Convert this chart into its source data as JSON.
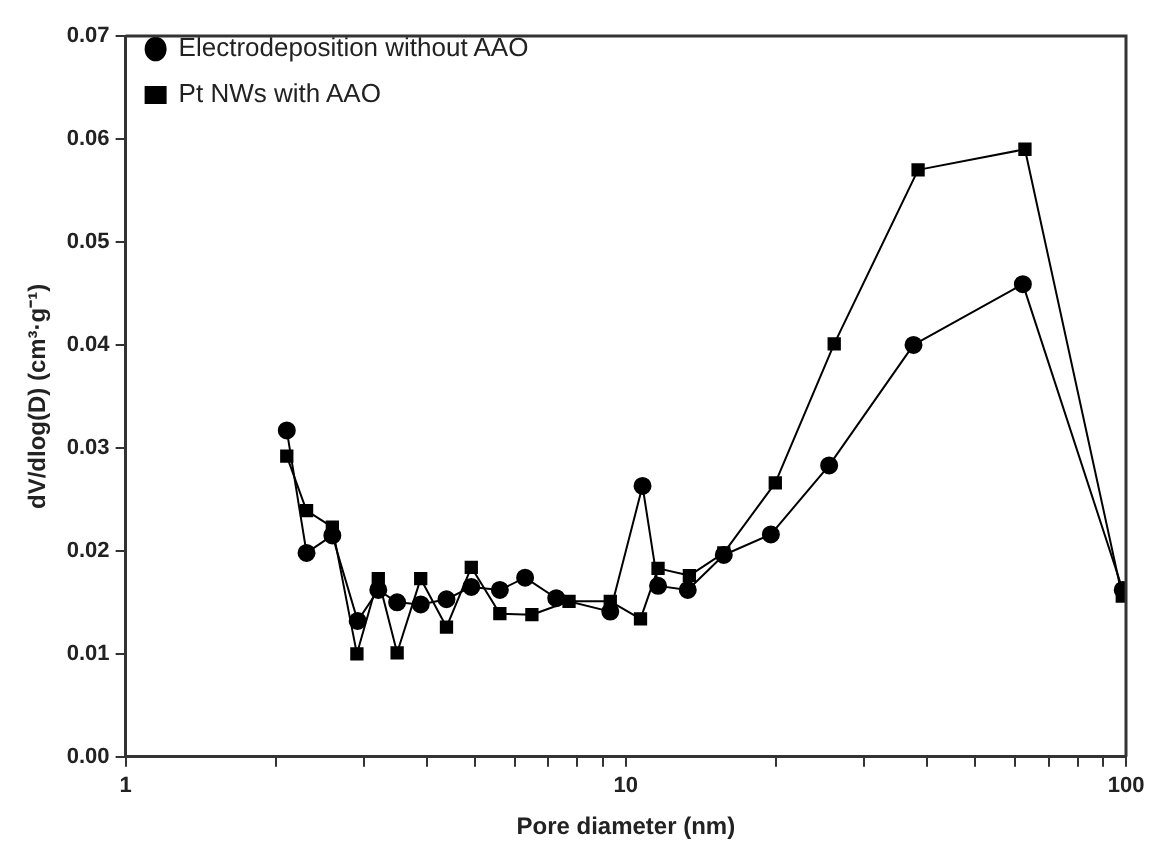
{
  "chart_data": {
    "type": "line",
    "xlabel": "Pore diameter (nm)",
    "ylabel": "dV/dlog(D) (cm³·g⁻¹)",
    "log": "x",
    "grid": false,
    "legend": "top left",
    "line_style": "solid",
    "xlim": [
      1,
      100
    ],
    "xticks": [
      1,
      {
        "value": 2,
        "label": null
      },
      {
        "value": 3,
        "label": null
      },
      {
        "value": 4,
        "label": null
      },
      {
        "value": 5,
        "label": null
      },
      {
        "value": 6,
        "label": null
      },
      {
        "value": 7,
        "label": null
      },
      {
        "value": 8,
        "label": null
      },
      {
        "value": 9,
        "label": null
      },
      10,
      {
        "value": 20,
        "label": null
      },
      {
        "value": 30,
        "label": null
      },
      {
        "value": 40,
        "label": null
      },
      {
        "value": 50,
        "label": null
      },
      {
        "value": 60,
        "label": null
      },
      {
        "value": 70,
        "label": null
      },
      {
        "value": 80,
        "label": null
      },
      {
        "value": 90,
        "label": null
      },
      100
    ],
    "ylim": [
      0,
      0.07
    ],
    "yticks": [
      {
        "value": 0,
        "label": "0.00"
      },
      {
        "value": 0.01,
        "label": "0.01"
      },
      {
        "value": 0.02,
        "label": "0.02"
      },
      {
        "value": 0.03,
        "label": "0.03"
      },
      {
        "value": 0.04,
        "label": "0.04"
      },
      {
        "value": 0.05,
        "label": "0.05"
      },
      {
        "value": 0.06,
        "label": "0.06"
      },
      {
        "value": 0.07,
        "label": "0.07"
      }
    ],
    "series": [
      {
        "name": "Electrodeposition without AAO",
        "color": "#000000",
        "marker": "circle",
        "x": [
          2.1,
          2.3,
          2.59,
          2.91,
          3.2,
          3.49,
          3.89,
          4.38,
          4.91,
          5.6,
          6.29,
          7.26,
          9.31,
          10.8,
          11.6,
          13.3,
          15.7,
          19.5,
          25.5,
          37.6,
          62.2,
          98.5
        ],
        "values": [
          0.0317,
          0.0198,
          0.0215,
          0.0132,
          0.0162,
          0.015,
          0.0148,
          0.0153,
          0.0165,
          0.0162,
          0.0174,
          0.0154,
          0.0141,
          0.0263,
          0.0166,
          0.0162,
          0.0196,
          0.0216,
          0.0283,
          0.04,
          0.0459,
          0.0162
        ]
      },
      {
        "name": "Pt NWs with AAO",
        "color": "#000000",
        "marker": "square",
        "x": [
          2.1,
          2.3,
          2.59,
          2.9,
          3.2,
          3.49,
          3.89,
          4.38,
          4.91,
          5.6,
          6.49,
          7.7,
          9.31,
          10.7,
          11.6,
          13.4,
          15.7,
          19.9,
          26.1,
          38.4,
          62.8,
          98.3
        ],
        "values": [
          0.0292,
          0.0239,
          0.0223,
          0.01,
          0.0173,
          0.0101,
          0.0173,
          0.0126,
          0.0184,
          0.0139,
          0.0138,
          0.0151,
          0.0151,
          0.0134,
          0.0183,
          0.0176,
          0.0198,
          0.0266,
          0.0401,
          0.057,
          0.059,
          0.0156
        ]
      }
    ]
  }
}
